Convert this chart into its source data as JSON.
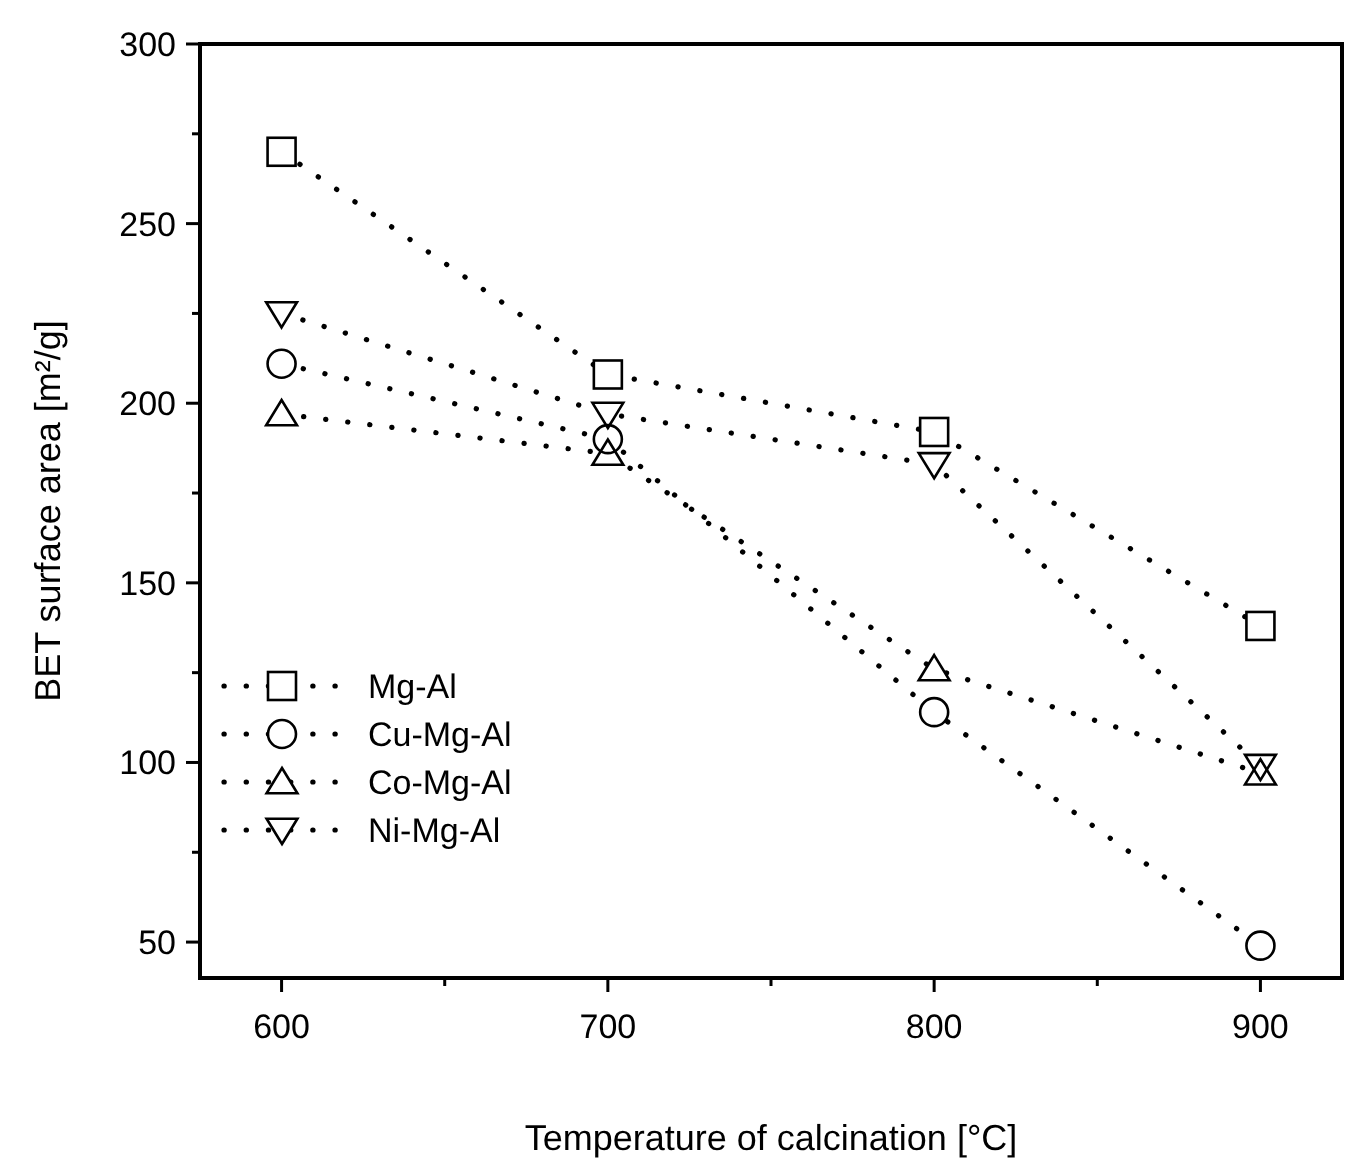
{
  "chart_data": {
    "type": "line",
    "xlabel": "Temperature of calcination [°C]",
    "ylabel": "BET surface area [m²/g]",
    "x": [
      600,
      700,
      800,
      900
    ],
    "xlim": [
      575,
      925
    ],
    "ylim": [
      40,
      300
    ],
    "xticks": [
      600,
      {
        "value": 650,
        "label": null
      },
      700,
      {
        "value": 750,
        "label": null
      },
      800,
      {
        "value": 850,
        "label": null
      },
      900
    ],
    "yticks": [
      50,
      {
        "value": 75,
        "label": null
      },
      100,
      {
        "value": 125,
        "label": null
      },
      150,
      {
        "value": 175,
        "label": null
      },
      200,
      {
        "value": 225,
        "label": null
      },
      250,
      {
        "value": 275,
        "label": null
      },
      300
    ],
    "grid": false,
    "legend": "bottom left",
    "line_style": "dotted",
    "series": [
      {
        "name": "Mg-Al",
        "color": "#000000",
        "marker": "square",
        "values": [
          270,
          208,
          192,
          138
        ]
      },
      {
        "name": "Cu-Mg-Al",
        "color": "#000000",
        "marker": "circle",
        "values": [
          211,
          190,
          114,
          49
        ]
      },
      {
        "name": "Co-Mg-Al",
        "color": "#000000",
        "marker": "triangle",
        "values": [
          197,
          186,
          126,
          97
        ]
      },
      {
        "name": "Ni-Mg-Al",
        "color": "#000000",
        "marker": "triangle-down",
        "values": [
          225,
          197,
          183,
          99
        ]
      }
    ]
  }
}
